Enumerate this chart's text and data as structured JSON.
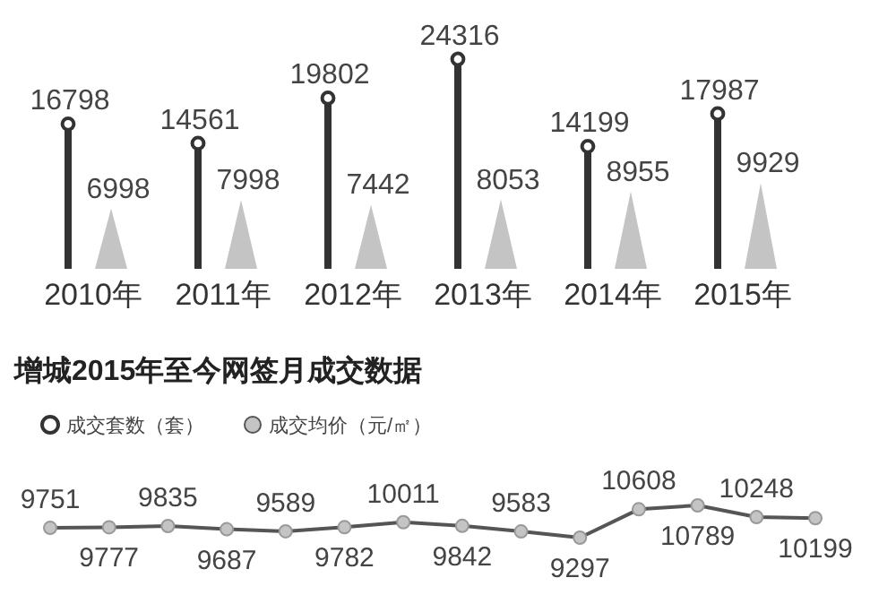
{
  "chart_data": [
    {
      "type": "lollipop",
      "categories": [
        "2010年",
        "2011年",
        "2012年",
        "2013年",
        "2014年",
        "2015年"
      ],
      "data_labels": true,
      "legend": "bottom",
      "series": [
        {
          "name": "成交套数（套）",
          "type": "lollipop",
          "color": "#333333",
          "values": [
            16798,
            14561,
            19802,
            24316,
            14199,
            17987
          ]
        },
        {
          "name": "成交均价（元/㎡）",
          "type": "bar",
          "color": "#c4c4c4",
          "values": [
            6998,
            7998,
            7442,
            8053,
            8955,
            9929
          ]
        }
      ]
    },
    {
      "type": "line",
      "title": "增城2015年至今网签月成交数据",
      "categories": [
        null,
        null,
        null,
        null,
        null,
        null,
        null,
        null,
        null,
        null,
        null,
        null,
        null,
        null
      ],
      "data_labels": true,
      "marker": "circle",
      "series": [
        {
          "color": "#555555",
          "values": [
            9751,
            9777,
            9835,
            9687,
            9589,
            9782,
            10011,
            9842,
            9583,
            9297,
            10608,
            10789,
            10248,
            10199
          ]
        }
      ]
    }
  ]
}
